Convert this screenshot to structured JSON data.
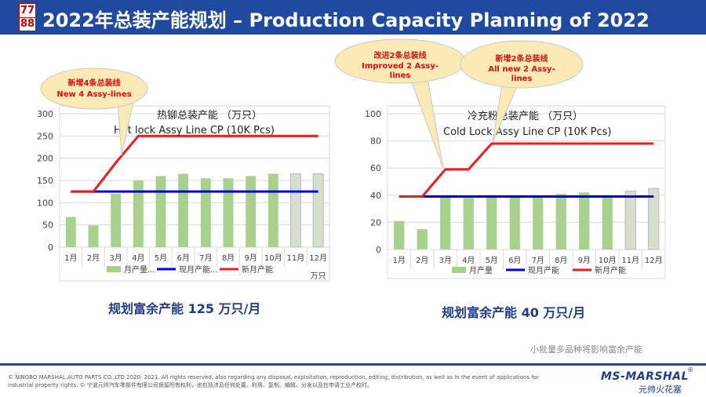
{
  "logo": {
    "top": "77",
    "bottom": "88"
  },
  "title": "2022年总装产能规划 – Production Capacity Planning of 2022",
  "chart_data": [
    {
      "type": "bar",
      "title_cn": "热铆总装产能 （万只）",
      "title_en": "Hot lock Assy Line CP (10K Pcs)",
      "categories": [
        "1月",
        "2月",
        "3月",
        "4月",
        "5月",
        "6月",
        "7月",
        "8月",
        "9月",
        "10月",
        "11月",
        "12月"
      ],
      "ylim": [
        0,
        300
      ],
      "yticks": [
        "0",
        "50",
        "100",
        "150",
        "200",
        "250",
        "300"
      ],
      "unit_label": "万只",
      "series": [
        {
          "name": "月产量...",
          "type": "bar",
          "color": "#a9d18e",
          "values": [
            68,
            49,
            120,
            150,
            160,
            165,
            155,
            155,
            160,
            165,
            165,
            165
          ]
        },
        {
          "name": "现月产能...",
          "type": "line",
          "color": "#0000ee",
          "values": [
            125,
            125,
            125,
            125,
            125,
            125,
            125,
            125,
            125,
            125,
            125,
            125
          ]
        },
        {
          "name": "新月产能",
          "type": "line",
          "color": "#ee1c1c",
          "values": [
            125,
            125,
            190,
            250,
            250,
            250,
            250,
            250,
            250,
            250,
            250,
            250
          ]
        }
      ],
      "callout": {
        "cn": "新增4条总装线",
        "en": "New 4 Assy-lines"
      },
      "summary": "规划富余产能 125 万只/月"
    },
    {
      "type": "bar",
      "title_cn": "冷充粉总装产能 （万只）",
      "title_en": "Cold Lock Assy Line CP (10K Pcs)",
      "categories": [
        "1月",
        "2月",
        "3月",
        "4月",
        "5月",
        "6月",
        "7月",
        "8月",
        "9月",
        "10月",
        "11月",
        "12月"
      ],
      "ylim": [
        0,
        100
      ],
      "yticks": [
        "0",
        "20",
        "40",
        "60",
        "80",
        "100"
      ],
      "series": [
        {
          "name": "月产量",
          "type": "bar",
          "color": "#a9d18e",
          "values": [
            21,
            15,
            39,
            38,
            39,
            39,
            40,
            41,
            42,
            39,
            43,
            45
          ]
        },
        {
          "name": "现月产能",
          "type": "line",
          "color": "#0000ee",
          "values": [
            39,
            39,
            39,
            39,
            39,
            39,
            39,
            39,
            39,
            39,
            39,
            39
          ]
        },
        {
          "name": "新月产能",
          "type": "line",
          "color": "#ee1c1c",
          "values": [
            39,
            39,
            59,
            59,
            78,
            78,
            78,
            78,
            78,
            78,
            78,
            78
          ]
        }
      ],
      "callouts": [
        {
          "cn": "改进2条总装线",
          "en": "Improved 2 Assy-lines"
        },
        {
          "cn": "新增2条总装线",
          "en": "All new 2 Assy-lines"
        }
      ],
      "summary": "规划富余产能 40 万只/月"
    }
  ],
  "note": "小批量多品种将影响富余产能",
  "copyright": "© NINGBO MARSHAL AUTO PARTS CO.,LTD 2020- 2021. All rights reserved, also regarding any disposal, exploitation, reproduction, editing, distribution, as well as in the event of applications for industrial property rights. © 宁波元帅汽车零部件有限公司保留所有权利，也包括涉及任何处置、利用、复制、编辑、分发以及在申请工业产权时。",
  "brand": {
    "name": "MS-MARSHAL",
    "sub": "元帅火花塞",
    "reg": "®"
  }
}
